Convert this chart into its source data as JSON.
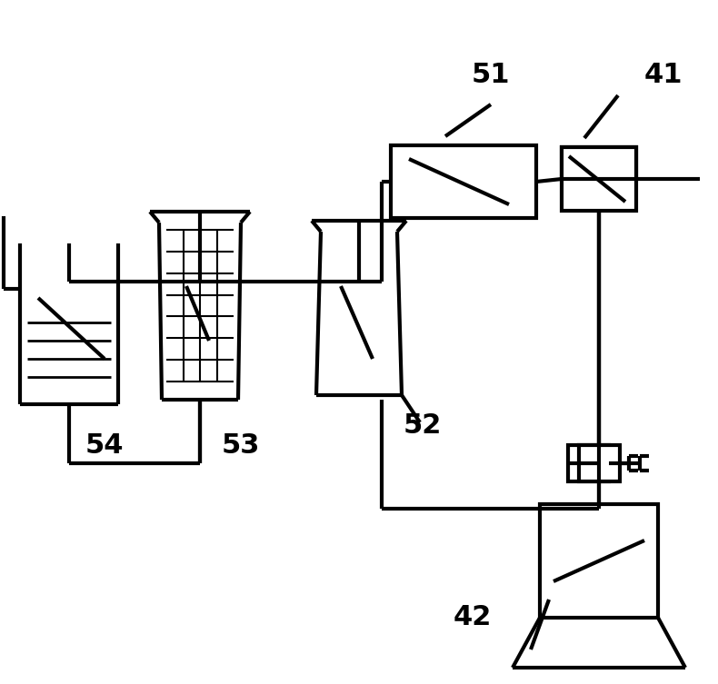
{
  "bg_color": "#ffffff",
  "line_color": "#000000",
  "lw": 3.0,
  "fig_w": 7.9,
  "fig_h": 7.53,
  "dpi": 100
}
